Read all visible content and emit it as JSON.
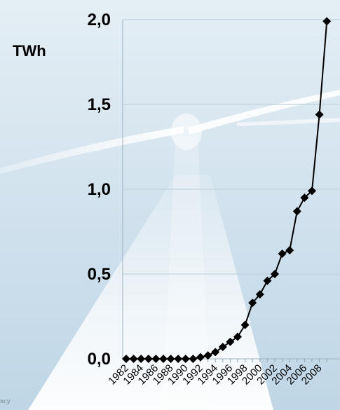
{
  "chart_data": {
    "type": "line",
    "title": "",
    "xlabel": "",
    "ylabel": "TWh",
    "ylim": [
      0,
      2.0
    ],
    "yticks": [
      "0,0",
      "0,5",
      "1,0",
      "1,5",
      "2,0"
    ],
    "grid": true,
    "x_tick_labels": [
      "1982",
      "1984",
      "1986",
      "1988",
      "1990",
      "1992",
      "1994",
      "1996",
      "1998",
      "2000",
      "2002",
      "2004",
      "2006",
      "2008"
    ],
    "x": [
      1982,
      1983,
      1984,
      1985,
      1986,
      1987,
      1988,
      1989,
      1990,
      1991,
      1992,
      1993,
      1994,
      1995,
      1996,
      1997,
      1998,
      1999,
      2000,
      2001,
      2002,
      2003,
      2004,
      2005,
      2006,
      2007,
      2008,
      2009
    ],
    "series": [
      {
        "name": "",
        "marker": "diamond",
        "color": "#000000",
        "values": [
          0.0,
          0.0,
          0.0,
          0.0,
          0.0,
          0.0,
          0.0,
          0.0,
          0.0,
          0.0,
          0.01,
          0.02,
          0.04,
          0.07,
          0.1,
          0.13,
          0.2,
          0.33,
          0.38,
          0.46,
          0.5,
          0.62,
          0.64,
          0.87,
          0.95,
          0.99,
          1.44,
          1.99
        ]
      }
    ]
  },
  "background": {
    "description_colors": [
      "#e5eff6",
      "#bcd4e4"
    ]
  },
  "credit_text": "ncy"
}
